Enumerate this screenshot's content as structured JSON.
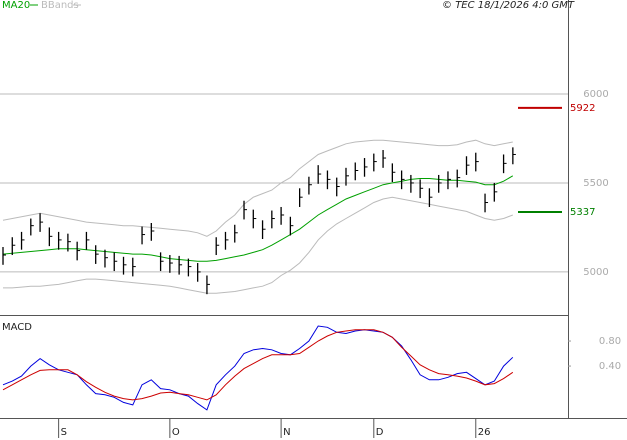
{
  "chart_data": [
    {
      "type": "ohlc",
      "credit": "© TEC 18/1/2026 4:0 GMT",
      "color": "#000000",
      "high": [
        5140,
        5195,
        5225,
        5300,
        5330,
        5250,
        5225,
        5215,
        5170,
        5225,
        5150,
        5125,
        5110,
        5085,
        5080,
        5255,
        5275,
        5110,
        5095,
        5090,
        5075,
        5050,
        4980,
        5195,
        5225,
        5265,
        5400,
        5350,
        5290,
        5345,
        5365,
        5310,
        5470,
        5535,
        5600,
        5570,
        5530,
        5585,
        5615,
        5640,
        5665,
        5685,
        5610,
        5570,
        5545,
        5520,
        5470,
        5545,
        5565,
        5575,
        5650,
        5670,
        5440,
        5500,
        5660,
        5700
      ],
      "low": [
        5040,
        5095,
        5125,
        5205,
        5225,
        5145,
        5125,
        5115,
        5065,
        5125,
        5045,
        5025,
        5005,
        4985,
        4975,
        5155,
        5175,
        5005,
        4995,
        4985,
        4975,
        4945,
        4875,
        5095,
        5125,
        5165,
        5295,
        5245,
        5185,
        5245,
        5265,
        5205,
        5365,
        5435,
        5495,
        5465,
        5425,
        5485,
        5515,
        5535,
        5565,
        5585,
        5505,
        5465,
        5445,
        5415,
        5365,
        5445,
        5465,
        5475,
        5545,
        5565,
        5335,
        5395,
        5555,
        5605
      ],
      "close": [
        5095,
        5150,
        5180,
        5260,
        5280,
        5200,
        5180,
        5170,
        5120,
        5180,
        5100,
        5080,
        5060,
        5040,
        5030,
        5210,
        5230,
        5060,
        5050,
        5040,
        5030,
        5000,
        4930,
        5150,
        5180,
        5220,
        5350,
        5300,
        5240,
        5300,
        5320,
        5260,
        5420,
        5490,
        5550,
        5520,
        5480,
        5540,
        5570,
        5590,
        5620,
        5640,
        5560,
        5520,
        5500,
        5470,
        5420,
        5500,
        5520,
        5530,
        5600,
        5620,
        5390,
        5450,
        5610,
        5660
      ],
      "overlays": [
        {
          "name": "MA20",
          "color": "#00a000",
          "values": [
            5100,
            5105,
            5110,
            5115,
            5120,
            5125,
            5130,
            5130,
            5130,
            5125,
            5120,
            5115,
            5110,
            5105,
            5100,
            5100,
            5095,
            5085,
            5075,
            5070,
            5065,
            5060,
            5060,
            5065,
            5075,
            5085,
            5095,
            5110,
            5125,
            5150,
            5180,
            5210,
            5240,
            5280,
            5320,
            5350,
            5380,
            5410,
            5430,
            5450,
            5470,
            5490,
            5500,
            5510,
            5520,
            5525,
            5525,
            5520,
            5515,
            5515,
            5510,
            5505,
            5490,
            5490,
            5510,
            5540
          ]
        },
        {
          "name": "BBands",
          "color": "#bbbbbb",
          "upper": [
            5290,
            5300,
            5310,
            5320,
            5330,
            5320,
            5310,
            5300,
            5290,
            5280,
            5275,
            5270,
            5265,
            5260,
            5260,
            5255,
            5250,
            5245,
            5240,
            5235,
            5230,
            5220,
            5200,
            5230,
            5280,
            5320,
            5380,
            5420,
            5440,
            5460,
            5500,
            5530,
            5580,
            5620,
            5660,
            5680,
            5700,
            5720,
            5730,
            5735,
            5740,
            5740,
            5735,
            5730,
            5725,
            5720,
            5715,
            5710,
            5710,
            5715,
            5730,
            5740,
            5720,
            5710,
            5720,
            5730
          ],
          "lower": [
            4910,
            4910,
            4915,
            4920,
            4920,
            4925,
            4930,
            4940,
            4950,
            4960,
            4960,
            4955,
            4950,
            4945,
            4940,
            4935,
            4930,
            4925,
            4920,
            4910,
            4900,
            4890,
            4880,
            4880,
            4885,
            4890,
            4900,
            4910,
            4920,
            4940,
            4980,
            5010,
            5050,
            5110,
            5180,
            5230,
            5270,
            5300,
            5330,
            5360,
            5390,
            5410,
            5420,
            5410,
            5400,
            5390,
            5380,
            5370,
            5360,
            5350,
            5340,
            5320,
            5300,
            5290,
            5300,
            5320
          ]
        }
      ],
      "annotations": [
        {
          "value": 5922,
          "color": "#c00000"
        },
        {
          "value": 5337,
          "color": "#008000"
        }
      ],
      "ylim": [
        4758,
        6528
      ],
      "yticks": [
        {
          "value": 5000,
          "label": "5000"
        },
        {
          "value": 5500,
          "label": "5500"
        },
        {
          "value": 6000,
          "label": "6000"
        }
      ],
      "grid": true
    },
    {
      "type": "line",
      "title": "MACD",
      "categories": [
        null,
        null,
        null,
        null,
        null,
        null,
        "S",
        null,
        null,
        null,
        null,
        null,
        null,
        null,
        null,
        null,
        null,
        null,
        "O",
        null,
        null,
        null,
        null,
        null,
        null,
        null,
        null,
        null,
        null,
        null,
        "N",
        null,
        null,
        null,
        null,
        null,
        null,
        null,
        null,
        null,
        "D",
        null,
        null,
        null,
        null,
        null,
        null,
        null,
        null,
        null,
        null,
        "26",
        null,
        null,
        null,
        null
      ],
      "series": [
        {
          "color": "#0000dd",
          "values": [
            0.1,
            0.16,
            0.24,
            0.4,
            0.52,
            0.42,
            0.34,
            0.3,
            0.26,
            0.1,
            -0.04,
            -0.06,
            -0.1,
            -0.18,
            -0.22,
            0.1,
            0.18,
            0.04,
            0.02,
            -0.04,
            -0.08,
            -0.2,
            -0.3,
            0.1,
            0.26,
            0.4,
            0.6,
            0.66,
            0.68,
            0.66,
            0.6,
            0.58,
            0.68,
            0.8,
            1.04,
            1.02,
            0.94,
            0.92,
            0.96,
            0.98,
            0.96,
            0.94,
            0.86,
            0.72,
            0.5,
            0.26,
            0.18,
            0.18,
            0.22,
            0.28,
            0.3,
            0.2,
            0.1,
            0.16,
            0.4,
            0.54
          ]
        },
        {
          "color": "#cc0000",
          "values": [
            0.02,
            0.1,
            0.18,
            0.26,
            0.33,
            0.34,
            0.34,
            0.34,
            0.26,
            0.15,
            0.06,
            -0.02,
            -0.08,
            -0.12,
            -0.14,
            -0.12,
            -0.08,
            -0.03,
            -0.02,
            -0.04,
            -0.06,
            -0.1,
            -0.14,
            -0.06,
            0.1,
            0.24,
            0.36,
            0.44,
            0.52,
            0.58,
            0.58,
            0.58,
            0.6,
            0.7,
            0.8,
            0.88,
            0.94,
            0.96,
            0.98,
            0.98,
            0.98,
            0.94,
            0.86,
            0.7,
            0.56,
            0.42,
            0.34,
            0.28,
            0.26,
            0.24,
            0.21,
            0.16,
            0.1,
            0.12,
            0.2,
            0.3
          ]
        }
      ],
      "ylim": [
        -0.43,
        1.2
      ],
      "yticks": [
        {
          "value": 0.8,
          "label": "0.80"
        },
        {
          "value": 0.4,
          "label": "0.40"
        }
      ]
    }
  ]
}
